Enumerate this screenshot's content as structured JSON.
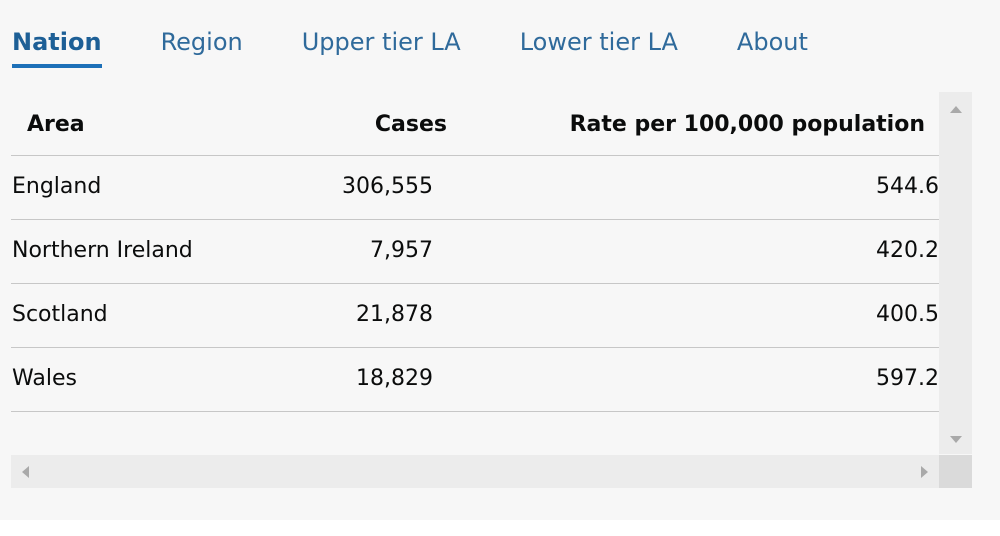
{
  "tabs": [
    {
      "label": "Nation",
      "active": true
    },
    {
      "label": "Region",
      "active": false
    },
    {
      "label": "Upper tier LA",
      "active": false
    },
    {
      "label": "Lower tier LA",
      "active": false
    },
    {
      "label": "About",
      "active": false
    }
  ],
  "table": {
    "headers": {
      "area": "Area",
      "cases": "Cases",
      "rate": "Rate per 100,000 population"
    },
    "rows": [
      {
        "area": "England",
        "cases": "306,555",
        "rate": "544.6"
      },
      {
        "area": "Northern Ireland",
        "cases": "7,957",
        "rate": "420.2"
      },
      {
        "area": "Scotland",
        "cases": "21,878",
        "rate": "400.5"
      },
      {
        "area": "Wales",
        "cases": "18,829",
        "rate": "597.2"
      }
    ]
  },
  "colors": {
    "tab_link": "#2f6a9b",
    "tab_active_underline": "#1d70b8",
    "panel_background": "#f7f7f7",
    "row_divider": "#c7c7c7"
  },
  "icons": {
    "scroll_up": "triangle-up-icon",
    "scroll_down": "triangle-down-icon",
    "scroll_left": "triangle-left-icon",
    "scroll_right": "triangle-right-icon"
  }
}
